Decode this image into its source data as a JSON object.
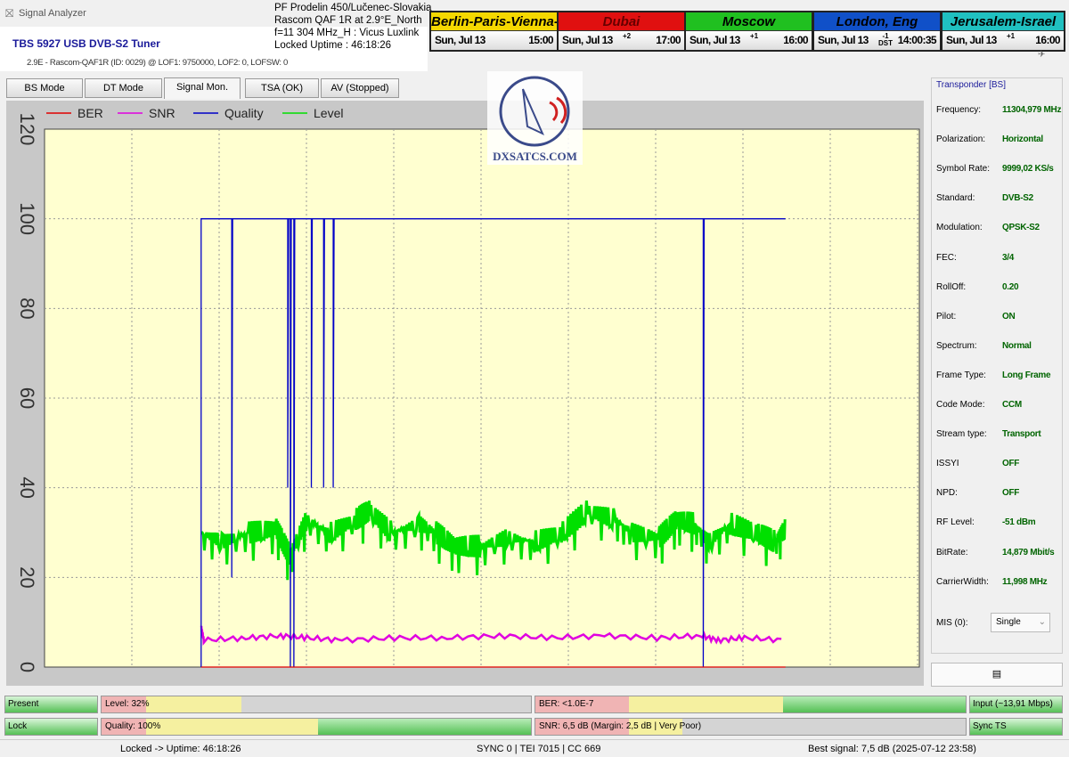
{
  "window": {
    "title": "Signal Analyzer"
  },
  "tuner": {
    "name": "TBS 5927 USB DVB-S2 Tuner",
    "details": "2.9E - Rascom-QAF1R (ID: 0029) @ LOF1: 9750000, LOF2: 0, LOFSW: 0"
  },
  "info": [
    "PF Prodelin 450/Lučenec-Slovakia",
    "Rascom QAF 1R at 2.9°E_North",
    "f=11 304 MHz_H : Vicus Luxlink",
    "Locked Uptime : 46:18:26"
  ],
  "clocks": [
    {
      "city": "Berlin-Paris-Vienna-Roma",
      "date": "Sun, Jul 13",
      "offset": "",
      "time": "15:00",
      "color": "#f5d800"
    },
    {
      "city": "Dubai",
      "date": "Sun, Jul 13",
      "offset": "+2",
      "time": "17:00",
      "color": "#e01010"
    },
    {
      "city": "Moscow",
      "date": "Sun, Jul 13",
      "offset": "+1",
      "time": "16:00",
      "color": "#20c020"
    },
    {
      "city": "London, Eng",
      "date": "Sun, Jul 13",
      "offset": "-1 DST",
      "time": "14:00:35",
      "color": "#1050c8"
    },
    {
      "city": "Jerusalem-Israel",
      "date": "Sun, Jul 13",
      "offset": "+1",
      "time": "16:00",
      "color": "#20c0c0"
    }
  ],
  "tabs": [
    {
      "label": "BS Mode"
    },
    {
      "label": "DT Mode"
    },
    {
      "label": "Signal Mon.",
      "active": true
    },
    {
      "label": "TSA (OK)"
    },
    {
      "label": "AV (Stopped)"
    }
  ],
  "logo": "DXSATCS.COM",
  "chart_data": {
    "type": "line",
    "ylim": [
      0,
      120
    ],
    "yticks": [
      "0",
      "20",
      "40",
      "60",
      "80",
      "100",
      "120"
    ],
    "xlim": [
      0,
      1000
    ],
    "grid": true,
    "legend": "top-left",
    "series": [
      {
        "name": "BER",
        "color": "#e00000",
        "points": [
          [
            179,
            0
          ],
          [
            847,
            0
          ]
        ]
      },
      {
        "name": "SNR",
        "color": "#e000e0",
        "points": [
          [
            179,
            9
          ],
          [
            182,
            6
          ],
          [
            230,
            6.5
          ],
          [
            270,
            7
          ],
          [
            300,
            6.5
          ],
          [
            340,
            6
          ],
          [
            400,
            6.5
          ],
          [
            460,
            6.5
          ],
          [
            520,
            7
          ],
          [
            580,
            6.5
          ],
          [
            640,
            7
          ],
          [
            700,
            6.5
          ],
          [
            750,
            7
          ],
          [
            770,
            6
          ],
          [
            800,
            6.5
          ],
          [
            847,
            6
          ]
        ]
      },
      {
        "name": "Quality",
        "color": "#0000c8",
        "points": [
          [
            179,
            0
          ],
          [
            179,
            100
          ],
          [
            214,
            100
          ],
          [
            214,
            20
          ],
          [
            215,
            100
          ],
          [
            278,
            100
          ],
          [
            278,
            40
          ],
          [
            279,
            100
          ],
          [
            281,
            100
          ],
          [
            281,
            0
          ],
          [
            282,
            100
          ],
          [
            285,
            100
          ],
          [
            285,
            0
          ],
          [
            286,
            100
          ],
          [
            305,
            100
          ],
          [
            305,
            40
          ],
          [
            306,
            100
          ],
          [
            319,
            100
          ],
          [
            319,
            40
          ],
          [
            320,
            100
          ],
          [
            330,
            100
          ],
          [
            330,
            40
          ],
          [
            331,
            100
          ],
          [
            753,
            100
          ],
          [
            753,
            0
          ],
          [
            754,
            100
          ],
          [
            847,
            100
          ]
        ]
      },
      {
        "name": "Level",
        "color": "#00e000",
        "points": [
          [
            179,
            30
          ],
          [
            204,
            28
          ],
          [
            234,
            30
          ],
          [
            265,
            31
          ],
          [
            280,
            25
          ],
          [
            300,
            33
          ],
          [
            326,
            30
          ],
          [
            356,
            33
          ],
          [
            372,
            35
          ],
          [
            397,
            30
          ],
          [
            428,
            32
          ],
          [
            448,
            30
          ],
          [
            469,
            27
          ],
          [
            499,
            27
          ],
          [
            530,
            29
          ],
          [
            560,
            28
          ],
          [
            591,
            30
          ],
          [
            621,
            35
          ],
          [
            652,
            33
          ],
          [
            672,
            30
          ],
          [
            703,
            29
          ],
          [
            723,
            33
          ],
          [
            743,
            32
          ],
          [
            759,
            28
          ],
          [
            784,
            32
          ],
          [
            815,
            30
          ],
          [
            835,
            28
          ],
          [
            847,
            31
          ]
        ]
      }
    ]
  },
  "transponder": {
    "title": "Transponder [BS]",
    "rows": [
      {
        "label": "Frequency:",
        "value": "11304,979 MHz"
      },
      {
        "label": "Polarization:",
        "value": "Horizontal"
      },
      {
        "label": "Symbol Rate:",
        "value": "9999,02 KS/s"
      },
      {
        "label": "Standard:",
        "value": "DVB-S2"
      },
      {
        "label": "Modulation:",
        "value": "QPSK-S2"
      },
      {
        "label": "FEC:",
        "value": "3/4"
      },
      {
        "label": "RollOff:",
        "value": "0.20"
      },
      {
        "label": "Pilot:",
        "value": "ON"
      },
      {
        "label": "Spectrum:",
        "value": "Normal"
      },
      {
        "label": "Frame Type:",
        "value": "Long Frame"
      },
      {
        "label": "Code Mode:",
        "value": "CCM"
      },
      {
        "label": "Stream type:",
        "value": "Transport"
      },
      {
        "label": "ISSYI",
        "value": "OFF"
      },
      {
        "label": "NPD:",
        "value": "OFF"
      },
      {
        "label": "RF Level:",
        "value": "-51 dBm"
      },
      {
        "label": "BitRate:",
        "value": "14,879 Mbit/s"
      },
      {
        "label": "CarrierWidth:",
        "value": "11,998 MHz"
      }
    ],
    "mis_label": "MIS (0):",
    "mis_value": "Single"
  },
  "indicators": {
    "present": "Present",
    "lock": "Lock",
    "input": "Input (~13,91 Mbps)",
    "sync": "Sync TS",
    "level": {
      "label": "Level: 32%",
      "percent": 32
    },
    "quality": {
      "label": "Quality: 100%",
      "percent": 100
    },
    "ber": {
      "label": "BER: <1.0E-7",
      "percent": 100
    },
    "snr": {
      "label": "SNR: 6,5 dB (Margin: 2,5 dB | Very Poor)",
      "percent": 43
    }
  },
  "status": {
    "uptime": "Locked -> Uptime: 46:18:26",
    "sync": "SYNC 0 | TEI 7015 | CC 669",
    "best": "Best signal: 7,5 dB (2025-07-12 23:58)"
  }
}
